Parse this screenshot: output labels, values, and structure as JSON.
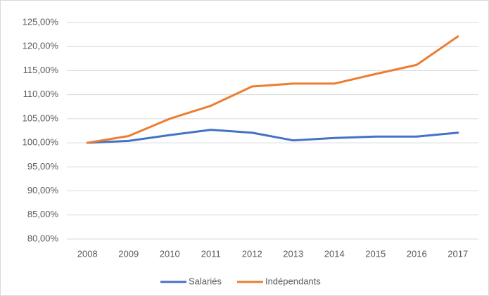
{
  "chart_data": {
    "type": "line",
    "categories": [
      "2008",
      "2009",
      "2010",
      "2011",
      "2012",
      "2013",
      "2014",
      "2015",
      "2016",
      "2017"
    ],
    "series": [
      {
        "name": "Salariés",
        "color": "#4472c4",
        "values": [
          100,
          100.4,
          101.6,
          102.7,
          102.1,
          100.5,
          101.0,
          101.3,
          101.3,
          102.1
        ]
      },
      {
        "name": "Indépendants",
        "color": "#ed7d31",
        "values": [
          100,
          101.4,
          105.0,
          107.7,
          111.7,
          112.3,
          112.3,
          114.3,
          116.2,
          122.1
        ]
      }
    ],
    "ylim": [
      80,
      125
    ],
    "yticks": [
      {
        "value": 80,
        "label": "80,00%"
      },
      {
        "value": 85,
        "label": "85,00%"
      },
      {
        "value": 90,
        "label": "90,00%"
      },
      {
        "value": 95,
        "label": "95,00%"
      },
      {
        "value": 100,
        "label": "100,00%"
      },
      {
        "value": 105,
        "label": "105,00%"
      },
      {
        "value": 110,
        "label": "110,00%"
      },
      {
        "value": 115,
        "label": "115,00%"
      },
      {
        "value": 120,
        "label": "120,00%"
      },
      {
        "value": 125,
        "label": "125,00%"
      }
    ],
    "grid": true,
    "legend": "bottom"
  }
}
